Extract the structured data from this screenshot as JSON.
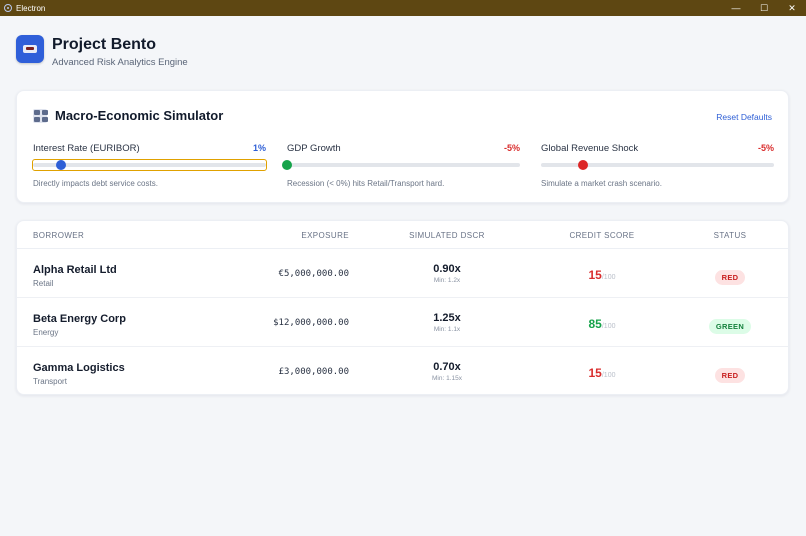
{
  "window": {
    "title": "Electron",
    "controls": {
      "minimize": "—",
      "maximize": "☐",
      "close": "✕"
    }
  },
  "header": {
    "title": "Project Bento",
    "subtitle": "Advanced Risk Analytics Engine",
    "logo_icon": "bento-box-icon"
  },
  "simulator": {
    "title": "Macro-Economic Simulator",
    "reset_label": "Reset Defaults",
    "sliders": [
      {
        "label": "Interest Rate (EURIBOR)",
        "value_label": "1%",
        "value_color": "#2e5fd6",
        "thumb_color": "#2e5fd6",
        "position": 0.12,
        "description": "Directly impacts debt service costs."
      },
      {
        "label": "GDP Growth",
        "value_label": "-5%",
        "value_color": "#d92d2d",
        "thumb_color": "#16a34a",
        "position": 0.0,
        "description": "Recession (< 0%) hits Retail/Transport hard."
      },
      {
        "label": "Global Revenue Shock",
        "value_label": "-5%",
        "value_color": "#d92d2d",
        "thumb_color": "#dc2626",
        "position": 0.18,
        "description": "Simulate a market crash scenario."
      }
    ]
  },
  "table": {
    "headers": {
      "borrower": "BORROWER",
      "exposure": "EXPOSURE",
      "dscr": "SIMULATED DSCR",
      "score": "CREDIT SCORE",
      "status": "STATUS"
    },
    "rows": [
      {
        "name": "Alpha Retail Ltd",
        "sector": "Retail",
        "exposure": "€5,000,000.00",
        "dscr": "0.90x",
        "dscr_min": "Min: 1.2x",
        "score": "15",
        "score_max": "/100",
        "score_color": "#d92d2d",
        "status": "RED",
        "status_bg": "#fde2e2",
        "status_color": "#c81e1e"
      },
      {
        "name": "Beta Energy Corp",
        "sector": "Energy",
        "exposure": "$12,000,000.00",
        "dscr": "1.25x",
        "dscr_min": "Min: 1.1x",
        "score": "85",
        "score_max": "/100",
        "score_color": "#16a34a",
        "status": "GREEN",
        "status_bg": "#dcfce7",
        "status_color": "#15803d"
      },
      {
        "name": "Gamma Logistics",
        "sector": "Transport",
        "exposure": "£3,000,000.00",
        "dscr": "0.70x",
        "dscr_min": "Min: 1.15x",
        "score": "15",
        "score_max": "/100",
        "score_color": "#d92d2d",
        "status": "RED",
        "status_bg": "#fde2e2",
        "status_color": "#c81e1e"
      }
    ]
  }
}
